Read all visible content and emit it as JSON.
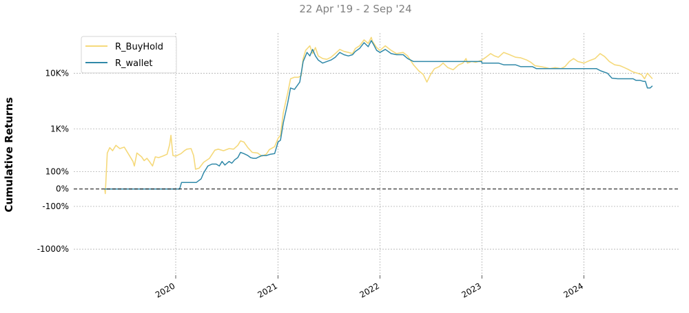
{
  "chart_data": {
    "type": "line",
    "title": "",
    "subtitle": "22 Apr '19 -  2 Sep '24",
    "xlabel": "",
    "ylabel": "Cumulative Returns",
    "y_scale": "symlog",
    "x_ticks": [
      "2020",
      "2021",
      "2022",
      "2023",
      "2024"
    ],
    "y_ticks": [
      {
        "value": -1000,
        "label": "-1000%"
      },
      {
        "value": -100,
        "label": "-100%"
      },
      {
        "value": 0,
        "label": "0%"
      },
      {
        "value": 100,
        "label": "100%"
      },
      {
        "value": 1000,
        "label": "1K%"
      },
      {
        "value": 10000,
        "label": "10K%"
      }
    ],
    "x_range": [
      "2019-01-01",
      "2024-12-05"
    ],
    "y_range": [
      -3000,
      50000
    ],
    "grid": true,
    "baseline": 0,
    "legend_position": "top-left",
    "series": [
      {
        "name": "R_BuyHold",
        "color": "#f5d97a",
        "points": [
          [
            "2019-04-22",
            0
          ],
          [
            "2019-04-24",
            -20
          ],
          [
            "2019-05-01",
            320
          ],
          [
            "2019-05-10",
            420
          ],
          [
            "2019-05-20",
            360
          ],
          [
            "2019-06-01",
            470
          ],
          [
            "2019-06-15",
            400
          ],
          [
            "2019-07-01",
            430
          ],
          [
            "2019-07-15",
            310
          ],
          [
            "2019-08-01",
            200
          ],
          [
            "2019-08-06",
            150
          ],
          [
            "2019-08-15",
            320
          ],
          [
            "2019-09-01",
            260
          ],
          [
            "2019-09-10",
            210
          ],
          [
            "2019-09-20",
            240
          ],
          [
            "2019-10-01",
            190
          ],
          [
            "2019-10-10",
            150
          ],
          [
            "2019-10-20",
            260
          ],
          [
            "2019-11-01",
            250
          ],
          [
            "2019-11-15",
            270
          ],
          [
            "2019-12-01",
            300
          ],
          [
            "2019-12-10",
            480
          ],
          [
            "2019-12-15",
            750
          ],
          [
            "2019-12-22",
            280
          ],
          [
            "2020-01-01",
            270
          ],
          [
            "2020-01-20",
            310
          ],
          [
            "2020-02-01",
            360
          ],
          [
            "2020-02-10",
            390
          ],
          [
            "2020-02-25",
            400
          ],
          [
            "2020-03-05",
            280
          ],
          [
            "2020-03-12",
            120
          ],
          [
            "2020-03-25",
            130
          ],
          [
            "2020-04-10",
            190
          ],
          [
            "2020-05-01",
            240
          ],
          [
            "2020-05-20",
            370
          ],
          [
            "2020-06-01",
            390
          ],
          [
            "2020-06-20",
            360
          ],
          [
            "2020-07-10",
            400
          ],
          [
            "2020-07-26",
            390
          ],
          [
            "2020-08-10",
            470
          ],
          [
            "2020-08-20",
            580
          ],
          [
            "2020-09-01",
            550
          ],
          [
            "2020-09-15",
            420
          ],
          [
            "2020-10-01",
            330
          ],
          [
            "2020-10-20",
            320
          ],
          [
            "2020-11-05",
            270
          ],
          [
            "2020-11-20",
            300
          ],
          [
            "2020-12-01",
            380
          ],
          [
            "2020-12-20",
            440
          ],
          [
            "2021-01-01",
            650
          ],
          [
            "2021-01-10",
            750
          ],
          [
            "2021-01-20",
            2000
          ],
          [
            "2021-02-05",
            4500
          ],
          [
            "2021-02-15",
            8000
          ],
          [
            "2021-03-01",
            8500
          ],
          [
            "2021-03-15",
            8500
          ],
          [
            "2021-03-25",
            9000
          ],
          [
            "2021-04-01",
            18000
          ],
          [
            "2021-04-10",
            25000
          ],
          [
            "2021-04-25",
            30000
          ],
          [
            "2021-05-05",
            22000
          ],
          [
            "2021-05-15",
            28000
          ],
          [
            "2021-05-25",
            20000
          ],
          [
            "2021-06-10",
            18000
          ],
          [
            "2021-06-25",
            17500
          ],
          [
            "2021-07-10",
            19000
          ],
          [
            "2021-07-25",
            22000
          ],
          [
            "2021-08-10",
            26000
          ],
          [
            "2021-08-25",
            24000
          ],
          [
            "2021-09-10",
            23000
          ],
          [
            "2021-09-25",
            22000
          ],
          [
            "2021-10-05",
            27000
          ],
          [
            "2021-10-20",
            30000
          ],
          [
            "2021-11-05",
            38000
          ],
          [
            "2021-11-20",
            33000
          ],
          [
            "2021-12-01",
            42000
          ],
          [
            "2021-12-05",
            36000
          ],
          [
            "2021-12-20",
            28000
          ],
          [
            "2022-01-01",
            25000
          ],
          [
            "2022-01-20",
            30000
          ],
          [
            "2022-02-10",
            25000
          ],
          [
            "2022-03-01",
            22000
          ],
          [
            "2022-03-25",
            23000
          ],
          [
            "2022-04-10",
            20000
          ],
          [
            "2022-05-01",
            14000
          ],
          [
            "2022-05-20",
            11000
          ],
          [
            "2022-06-05",
            9500
          ],
          [
            "2022-06-18",
            7000
          ],
          [
            "2022-07-01",
            9500
          ],
          [
            "2022-07-15",
            12000
          ],
          [
            "2022-08-01",
            13000
          ],
          [
            "2022-08-15",
            15000
          ],
          [
            "2022-09-01",
            12500
          ],
          [
            "2022-09-20",
            11500
          ],
          [
            "2022-10-10",
            14000
          ],
          [
            "2022-10-25",
            15000
          ],
          [
            "2022-11-05",
            18000
          ],
          [
            "2022-11-10",
            15000
          ],
          [
            "2022-11-25",
            16000
          ],
          [
            "2022-12-10",
            15500
          ],
          [
            "2023-01-01",
            17000
          ],
          [
            "2023-01-15",
            19000
          ],
          [
            "2023-02-01",
            22000
          ],
          [
            "2023-02-15",
            20000
          ],
          [
            "2023-03-01",
            19000
          ],
          [
            "2023-03-20",
            23000
          ],
          [
            "2023-04-10",
            21000
          ],
          [
            "2023-05-01",
            19000
          ],
          [
            "2023-05-20",
            18500
          ],
          [
            "2023-06-10",
            17000
          ],
          [
            "2023-06-25",
            15500
          ],
          [
            "2023-07-10",
            13500
          ],
          [
            "2023-08-01",
            13000
          ],
          [
            "2023-08-17",
            12500
          ],
          [
            "2023-09-01",
            12000
          ],
          [
            "2023-09-20",
            12500
          ],
          [
            "2023-10-10",
            12000
          ],
          [
            "2023-10-25",
            13000
          ],
          [
            "2023-11-10",
            16000
          ],
          [
            "2023-11-25",
            18000
          ],
          [
            "2023-12-10",
            16000
          ],
          [
            "2024-01-01",
            15000
          ],
          [
            "2024-01-20",
            16500
          ],
          [
            "2024-02-10",
            18000
          ],
          [
            "2024-02-28",
            22000
          ],
          [
            "2024-03-15",
            19500
          ],
          [
            "2024-04-01",
            16000
          ],
          [
            "2024-04-20",
            14000
          ],
          [
            "2024-05-10",
            13500
          ],
          [
            "2024-05-25",
            12500
          ],
          [
            "2024-06-10",
            11500
          ],
          [
            "2024-06-25",
            10500
          ],
          [
            "2024-07-10",
            10000
          ],
          [
            "2024-07-25",
            9500
          ],
          [
            "2024-08-05",
            8000
          ],
          [
            "2024-08-15",
            10000
          ],
          [
            "2024-09-02",
            8000
          ]
        ]
      },
      {
        "name": "R_wallet",
        "color": "#2f88a8",
        "points": [
          [
            "2019-04-22",
            0
          ],
          [
            "2019-06-01",
            0
          ],
          [
            "2019-09-01",
            0
          ],
          [
            "2019-12-01",
            0
          ],
          [
            "2020-01-01",
            0
          ],
          [
            "2020-01-15",
            0
          ],
          [
            "2020-01-22",
            30
          ],
          [
            "2020-02-15",
            30
          ],
          [
            "2020-03-15",
            30
          ],
          [
            "2020-04-01",
            50
          ],
          [
            "2020-04-10",
            90
          ],
          [
            "2020-04-25",
            150
          ],
          [
            "2020-05-10",
            170
          ],
          [
            "2020-05-25",
            170
          ],
          [
            "2020-06-05",
            150
          ],
          [
            "2020-06-15",
            200
          ],
          [
            "2020-06-25",
            160
          ],
          [
            "2020-07-10",
            200
          ],
          [
            "2020-07-20",
            180
          ],
          [
            "2020-07-30",
            220
          ],
          [
            "2020-08-10",
            250
          ],
          [
            "2020-08-20",
            330
          ],
          [
            "2020-09-01",
            310
          ],
          [
            "2020-09-15",
            280
          ],
          [
            "2020-09-25",
            250
          ],
          [
            "2020-10-05",
            240
          ],
          [
            "2020-10-15",
            240
          ],
          [
            "2020-10-25",
            260
          ],
          [
            "2020-11-05",
            280
          ],
          [
            "2020-11-20",
            280
          ],
          [
            "2020-12-05",
            300
          ],
          [
            "2020-12-20",
            310
          ],
          [
            "2021-01-01",
            550
          ],
          [
            "2021-01-10",
            600
          ],
          [
            "2021-01-20",
            1300
          ],
          [
            "2021-02-05",
            3000
          ],
          [
            "2021-02-15",
            5500
          ],
          [
            "2021-03-01",
            5200
          ],
          [
            "2021-03-20",
            7000
          ],
          [
            "2021-04-01",
            16000
          ],
          [
            "2021-04-15",
            23000
          ],
          [
            "2021-04-25",
            20000
          ],
          [
            "2021-05-05",
            26000
          ],
          [
            "2021-05-15",
            20000
          ],
          [
            "2021-05-25",
            17000
          ],
          [
            "2021-06-10",
            15000
          ],
          [
            "2021-06-25",
            16000
          ],
          [
            "2021-07-10",
            17000
          ],
          [
            "2021-07-25",
            19000
          ],
          [
            "2021-08-10",
            23000
          ],
          [
            "2021-08-25",
            21000
          ],
          [
            "2021-09-10",
            20000
          ],
          [
            "2021-09-25",
            21000
          ],
          [
            "2021-10-05",
            24000
          ],
          [
            "2021-10-20",
            27000
          ],
          [
            "2021-11-05",
            34000
          ],
          [
            "2021-11-20",
            29000
          ],
          [
            "2021-12-01",
            37000
          ],
          [
            "2021-12-10",
            31000
          ],
          [
            "2021-12-20",
            25000
          ],
          [
            "2022-01-01",
            23000
          ],
          [
            "2022-01-20",
            26000
          ],
          [
            "2022-02-10",
            22000
          ],
          [
            "2022-03-01",
            21000
          ],
          [
            "2022-03-25",
            21000
          ],
          [
            "2022-04-10",
            18000
          ],
          [
            "2022-05-01",
            16000
          ],
          [
            "2022-06-01",
            16000
          ],
          [
            "2022-08-01",
            16000
          ],
          [
            "2022-10-01",
            16000
          ],
          [
            "2022-12-01",
            16000
          ],
          [
            "2022-12-31",
            16000
          ],
          [
            "2023-01-01",
            15000
          ],
          [
            "2023-03-01",
            15000
          ],
          [
            "2023-03-20",
            14000
          ],
          [
            "2023-05-01",
            14000
          ],
          [
            "2023-05-20",
            13000
          ],
          [
            "2023-07-01",
            13000
          ],
          [
            "2023-07-15",
            12000
          ],
          [
            "2023-09-01",
            12000
          ],
          [
            "2023-11-01",
            12000
          ],
          [
            "2024-01-01",
            12000
          ],
          [
            "2024-02-15",
            12000
          ],
          [
            "2024-03-01",
            11000
          ],
          [
            "2024-03-25",
            10000
          ],
          [
            "2024-04-10",
            8200
          ],
          [
            "2024-05-01",
            8000
          ],
          [
            "2024-06-01",
            8000
          ],
          [
            "2024-06-25",
            8000
          ],
          [
            "2024-07-05",
            7500
          ],
          [
            "2024-07-20",
            7500
          ],
          [
            "2024-08-01",
            7200
          ],
          [
            "2024-08-08",
            7200
          ],
          [
            "2024-08-15",
            5500
          ],
          [
            "2024-08-25",
            5500
          ],
          [
            "2024-09-02",
            6000
          ]
        ]
      }
    ]
  }
}
